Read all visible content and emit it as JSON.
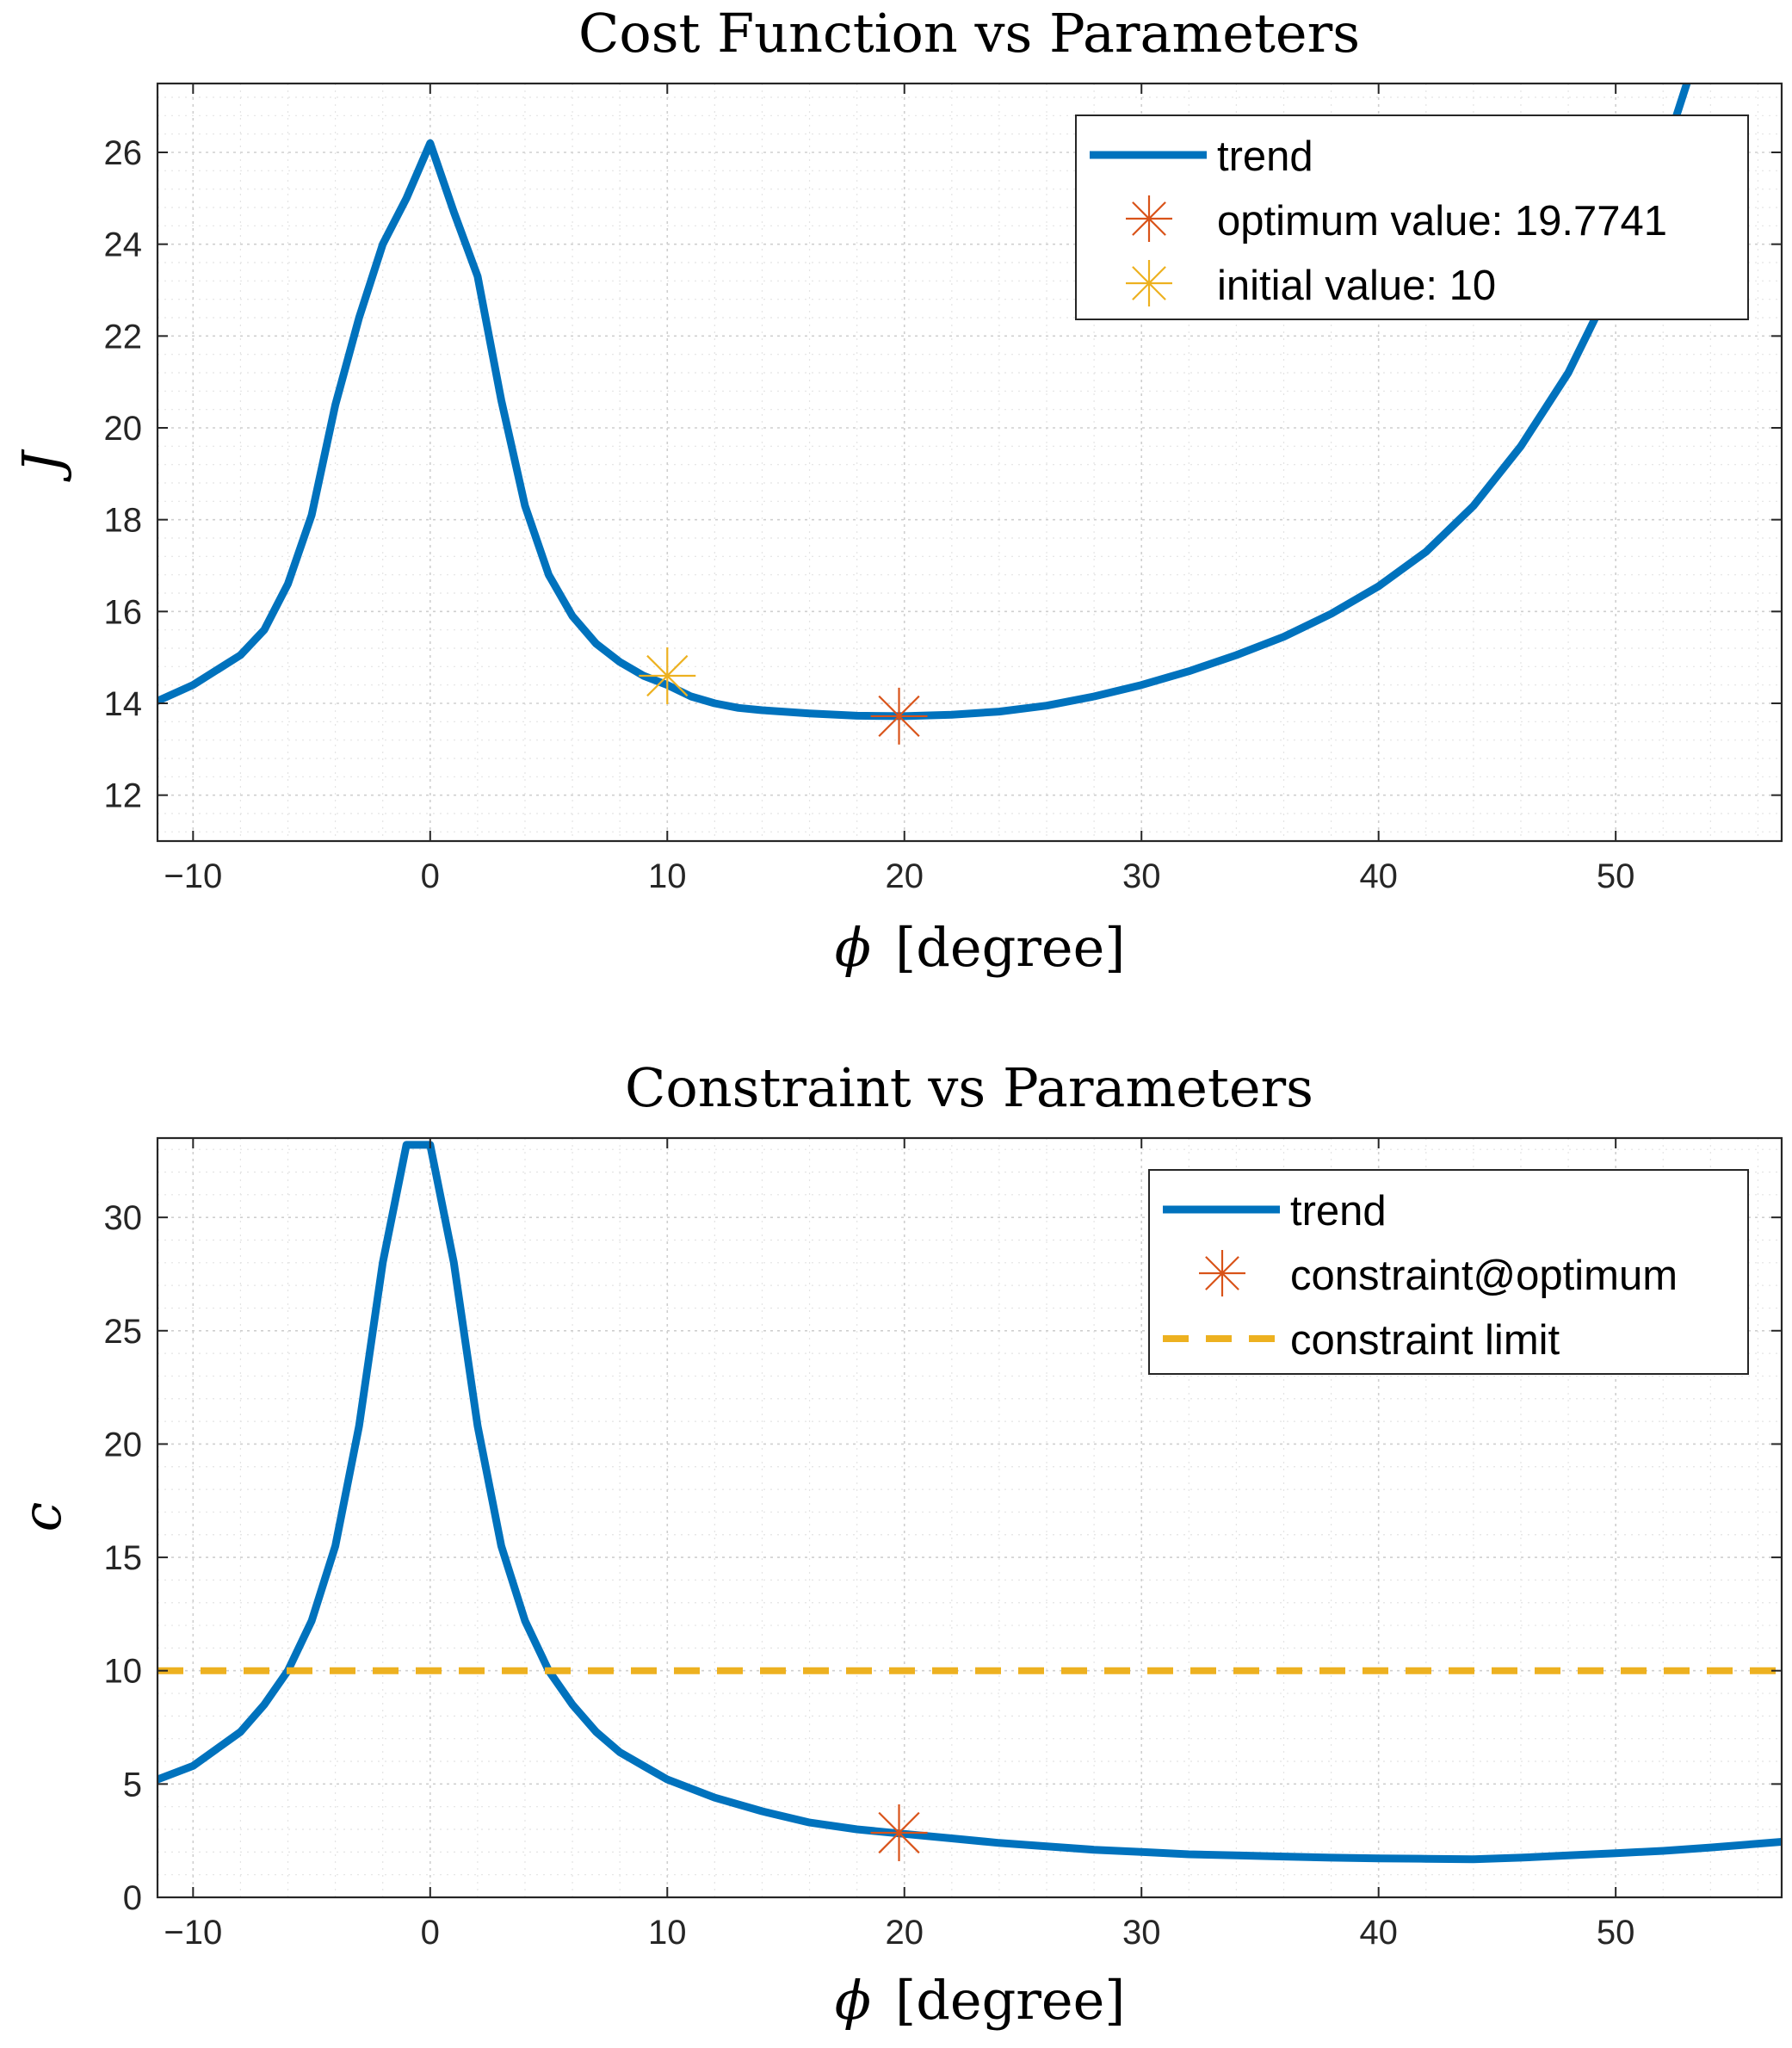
{
  "chart_data": [
    {
      "type": "line",
      "title": "Cost Function vs Parameters",
      "xlabel_symbol": "ϕ",
      "xlabel_unit": "[degree]",
      "ylabel": "J",
      "xlim": [
        -11.5,
        57
      ],
      "ylim": [
        11,
        27.5
      ],
      "xticks": [
        -10,
        0,
        10,
        20,
        30,
        40,
        50
      ],
      "xtick_labels": [
        "−10",
        "0",
        "10",
        "20",
        "30",
        "40",
        "50"
      ],
      "yticks": [
        12,
        14,
        16,
        18,
        20,
        22,
        24,
        26
      ],
      "ytick_labels": [
        "12",
        "14",
        "16",
        "18",
        "20",
        "22",
        "24",
        "26"
      ],
      "grid": true,
      "minor_grid": true,
      "legend_position": "top-right",
      "series": [
        {
          "name": "trend",
          "kind": "line",
          "color": "#0072BD",
          "x": [
            -11.5,
            -10,
            -8,
            -7,
            -6,
            -5,
            -4,
            -3,
            -2,
            -1,
            0,
            1,
            2,
            3,
            4,
            5,
            6,
            7,
            8,
            9,
            10,
            11,
            12,
            13,
            14,
            16,
            18,
            20,
            22,
            24,
            26,
            28,
            30,
            32,
            34,
            36,
            38,
            40,
            42,
            44,
            46,
            48,
            50,
            51,
            52,
            53
          ],
          "y": [
            14.05,
            14.4,
            15.05,
            15.6,
            16.6,
            18.1,
            20.5,
            22.4,
            24.0,
            25.0,
            26.2,
            24.7,
            23.3,
            20.6,
            18.3,
            16.8,
            15.9,
            15.3,
            14.9,
            14.6,
            14.4,
            14.15,
            14.0,
            13.9,
            13.85,
            13.78,
            13.73,
            13.72,
            13.75,
            13.82,
            13.95,
            14.15,
            14.4,
            14.7,
            15.05,
            15.45,
            15.95,
            16.55,
            17.3,
            18.3,
            19.6,
            21.2,
            23.3,
            24.6,
            25.9,
            27.5
          ]
        },
        {
          "name": "optimum value: 19.7741",
          "kind": "marker",
          "marker": "asterisk",
          "color": "#D95319",
          "x": [
            19.7741
          ],
          "y": [
            13.72
          ]
        },
        {
          "name": "initial value: 10",
          "kind": "marker",
          "marker": "asterisk",
          "color": "#EDB120",
          "x": [
            10
          ],
          "y": [
            14.6
          ]
        }
      ]
    },
    {
      "type": "line",
      "title": "Constraint vs Parameters",
      "xlabel_symbol": "ϕ",
      "xlabel_unit": "[degree]",
      "ylabel": "c",
      "xlim": [
        -11.5,
        57
      ],
      "ylim": [
        0,
        33.5
      ],
      "xticks": [
        -10,
        0,
        10,
        20,
        30,
        40,
        50
      ],
      "xtick_labels": [
        "−10",
        "0",
        "10",
        "20",
        "30",
        "40",
        "50"
      ],
      "yticks": [
        0,
        5,
        10,
        15,
        20,
        25,
        30
      ],
      "ytick_labels": [
        "0",
        "5",
        "10",
        "15",
        "20",
        "25",
        "30"
      ],
      "grid": true,
      "minor_grid": true,
      "legend_position": "top-right",
      "series": [
        {
          "name": "trend",
          "kind": "line",
          "color": "#0072BD",
          "x": [
            -11.5,
            -10,
            -8,
            -7,
            -6,
            -5,
            -4,
            -3,
            -2,
            -1,
            0,
            1,
            2,
            3,
            4,
            5,
            6,
            7,
            8,
            9,
            10,
            12,
            14,
            16,
            18,
            20,
            22,
            24,
            26,
            28,
            30,
            32,
            34,
            36,
            38,
            40,
            42,
            44,
            46,
            48,
            50,
            52,
            54,
            57
          ],
          "y": [
            5.2,
            5.8,
            7.3,
            8.5,
            10.0,
            12.2,
            15.5,
            20.8,
            28.0,
            33.2,
            33.2,
            28.0,
            20.8,
            15.5,
            12.2,
            10.0,
            8.5,
            7.3,
            6.4,
            5.8,
            5.2,
            4.4,
            3.8,
            3.3,
            3.0,
            2.8,
            2.6,
            2.4,
            2.25,
            2.1,
            2.0,
            1.9,
            1.85,
            1.8,
            1.75,
            1.72,
            1.7,
            1.68,
            1.75,
            1.85,
            1.95,
            2.05,
            2.2,
            2.45
          ]
        },
        {
          "name": "constraint@optimum",
          "kind": "marker",
          "marker": "asterisk",
          "color": "#D95319",
          "x": [
            19.7741
          ],
          "y": [
            2.85
          ]
        },
        {
          "name": "constraint limit",
          "kind": "hline",
          "style": "dashed",
          "color": "#EDB120",
          "y": 10
        }
      ]
    }
  ]
}
